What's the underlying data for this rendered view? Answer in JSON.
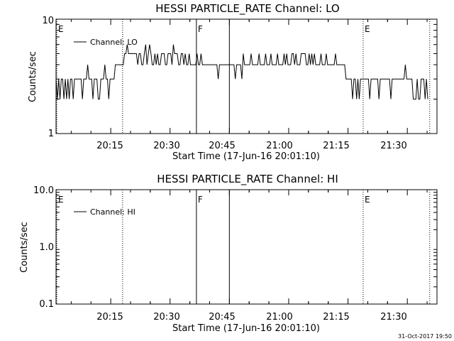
{
  "chart_data": [
    {
      "type": "line",
      "title": "HESSI PARTICLE_RATE Channel: LO",
      "xlabel": "Start Time (17-Jun-16 20:01:10)",
      "ylabel": "Counts/sec",
      "yscale": "log",
      "ylim": [
        1,
        10
      ],
      "ytick_labels": [
        "1",
        "10"
      ],
      "xlim": [
        "20:01:10",
        "21:37:30"
      ],
      "xtick_labels": [
        "20:15",
        "20:30",
        "20:45",
        "21:00",
        "21:15",
        "21:30"
      ],
      "legend": {
        "placement": "top-left",
        "entries": [
          "Channel: LO"
        ]
      },
      "markers": [
        {
          "time": "20:01:10",
          "label": "E",
          "style": "dotted"
        },
        {
          "time": "20:18:00",
          "label": "",
          "style": "dotted"
        },
        {
          "time": "20:36:40",
          "label": "F",
          "style": "solid"
        },
        {
          "time": "20:45:00",
          "label": "",
          "style": "solid"
        },
        {
          "time": "21:18:50",
          "label": "E",
          "style": "dotted"
        },
        {
          "time": "21:35:40",
          "label": "",
          "style": "dotted"
        }
      ],
      "series": [
        {
          "name": "Channel: LO",
          "step_seconds": 20,
          "values": [
            3,
            2,
            3,
            2,
            3,
            3,
            2,
            3,
            2,
            3,
            2,
            3,
            3,
            2,
            3,
            3,
            3,
            3,
            3,
            3,
            2,
            3,
            3,
            3,
            4,
            3,
            3,
            3,
            2,
            3,
            3,
            3,
            2,
            2,
            3,
            3,
            3,
            4,
            3,
            3,
            2,
            3,
            3,
            3,
            3,
            4,
            4,
            4,
            4,
            4,
            4,
            4,
            5,
            5,
            6,
            5,
            5,
            5,
            5,
            5,
            5,
            5,
            4,
            5,
            5,
            4,
            4,
            5,
            6,
            4,
            5,
            6,
            5,
            4,
            4,
            5,
            4,
            5,
            4,
            4,
            5,
            5,
            5,
            4,
            4,
            5,
            5,
            5,
            4,
            6,
            5,
            5,
            5,
            4,
            4,
            5,
            5,
            4,
            5,
            4,
            4,
            5,
            4,
            4,
            4,
            4,
            4,
            5,
            4,
            4,
            5,
            4,
            4,
            4,
            4,
            4,
            4,
            4,
            4,
            4,
            4,
            4,
            4,
            3,
            4,
            4,
            4,
            4,
            4,
            4,
            4,
            4,
            4,
            4,
            4,
            4,
            3,
            4,
            4,
            4,
            4,
            3,
            5,
            4,
            4,
            4,
            4,
            4,
            5,
            4,
            4,
            4,
            4,
            4,
            5,
            4,
            4,
            4,
            4,
            5,
            4,
            4,
            4,
            5,
            4,
            4,
            4,
            4,
            5,
            4,
            4,
            4,
            4,
            5,
            4,
            5,
            4,
            4,
            4,
            5,
            5,
            4,
            5,
            4,
            4,
            4,
            5,
            5,
            5,
            5,
            4,
            4,
            5,
            4,
            5,
            4,
            5,
            4,
            4,
            4,
            4,
            5,
            4,
            4,
            4,
            5,
            4,
            4,
            4,
            4,
            4,
            4,
            5,
            4,
            4,
            4,
            4,
            4,
            4,
            4,
            3,
            3,
            3,
            3,
            3,
            2,
            3,
            3,
            2,
            3,
            2,
            3,
            3,
            3,
            3,
            3,
            3,
            3,
            2,
            3,
            3,
            3,
            3,
            3,
            3,
            2,
            3,
            3,
            3,
            3,
            3,
            3,
            3,
            3,
            2,
            3,
            3,
            3,
            3,
            3,
            3,
            3,
            3,
            3,
            3,
            4,
            3,
            3,
            3,
            3,
            3,
            2,
            2,
            2,
            3,
            2,
            2,
            3,
            3,
            3,
            2,
            3,
            2
          ]
        }
      ]
    },
    {
      "type": "line",
      "title": "HESSI PARTICLE_RATE Channel: HI",
      "xlabel": "Start Time (17-Jun-16 20:01:10)",
      "ylabel": "Counts/sec",
      "yscale": "log",
      "ylim": [
        0.1,
        10
      ],
      "ytick_labels": [
        "0.1",
        "1.0",
        "10.0"
      ],
      "xlim": [
        "20:01:10",
        "21:37:30"
      ],
      "xtick_labels": [
        "20:15",
        "20:30",
        "20:45",
        "21:00",
        "21:15",
        "21:30"
      ],
      "legend": {
        "placement": "top-left",
        "entries": [
          "Channel: HI"
        ]
      },
      "markers": [
        {
          "time": "20:01:10",
          "label": "E",
          "style": "dotted"
        },
        {
          "time": "20:18:00",
          "label": "",
          "style": "dotted"
        },
        {
          "time": "20:36:40",
          "label": "F",
          "style": "solid"
        },
        {
          "time": "20:45:00",
          "label": "",
          "style": "solid"
        },
        {
          "time": "21:18:50",
          "label": "E",
          "style": "dotted"
        },
        {
          "time": "21:35:40",
          "label": "",
          "style": "dotted"
        }
      ],
      "series": [
        {
          "name": "Channel: HI",
          "values": []
        }
      ]
    }
  ],
  "footer": {
    "stamp": "31-Oct-2017 19:50"
  }
}
